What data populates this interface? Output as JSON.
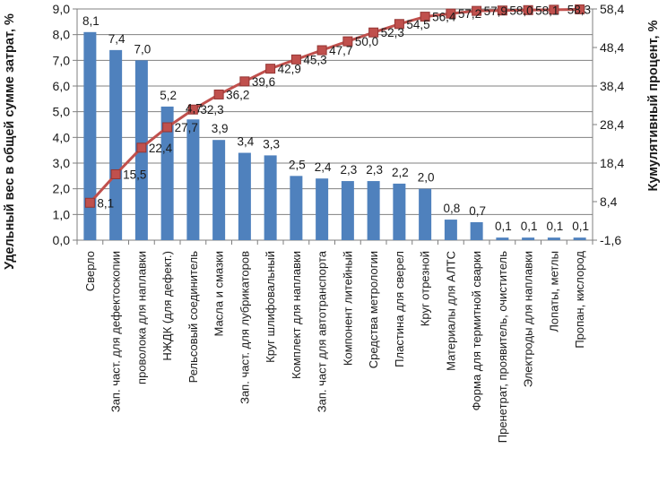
{
  "chart_data": {
    "type": "bar",
    "subtype": "pareto-combo-bar-line",
    "title": "",
    "legend": false,
    "grid": true,
    "categories": [
      "Сверло",
      "Зап. част. для дефектоскопии",
      "проволока для наплавки",
      "НЖДК (для дефект.)",
      "Рельсовый соединитель",
      "Масла и смазки",
      "Зап. част. для лубрикаторов",
      "Круг шлифовальный",
      "Комплект для наплавки",
      "Зап. част для автотранспорта",
      "Компонент литейный",
      "Средства метрологии",
      "Пластина для сверел",
      "Круг отрезной",
      "Материалы для АЛТС",
      "Форма для термитной сварки",
      "Пренетрат, проявитель, очиститель",
      "Электроды для наплавки",
      "Лопаты, метлы",
      "Пропан, кислород"
    ],
    "series": [
      {
        "name": "Удельный вес",
        "type": "bar",
        "axis": "left",
        "color": "#4f81bd",
        "values": [
          8.1,
          7.4,
          7.0,
          5.2,
          4.7,
          3.9,
          3.4,
          3.3,
          2.5,
          2.4,
          2.3,
          2.3,
          2.2,
          2.0,
          0.8,
          0.7,
          0.1,
          0.1,
          0.1,
          0.1
        ],
        "labels": [
          "8,1",
          "7,4",
          "7,0",
          "5,2",
          "4,7",
          "3,9",
          "3,4",
          "3,3",
          "2,5",
          "2,4",
          "2,3",
          "2,3",
          "2,2",
          "2,0",
          "0,8",
          "0,7",
          "0,1",
          "0,1",
          "0,1",
          "0,1"
        ]
      },
      {
        "name": "Кумулятивный процент",
        "type": "line",
        "axis": "right",
        "color": "#c0504d",
        "marker_border": "#943634",
        "values": [
          8.1,
          15.5,
          22.4,
          27.7,
          32.3,
          36.2,
          39.6,
          42.9,
          45.3,
          47.7,
          50.0,
          52.3,
          54.5,
          56.4,
          57.2,
          57.9,
          58.0,
          58.1,
          58.2,
          58.3
        ],
        "labels": [
          "8,1",
          "15,5",
          "22,4",
          "27,7",
          "32,3",
          "36,2",
          "39,6",
          "42,9",
          "45,3",
          "47,7",
          "50,0",
          "52,3",
          "54,5",
          "56,4",
          "57,2",
          "57,9",
          "58,0",
          "58,1",
          "",
          "58,3"
        ]
      }
    ],
    "left_axis": {
      "title": "Удельный вес в общей сумме затрат, %",
      "min": 0,
      "max": 9,
      "step": 1,
      "ticks": [
        "0,0",
        "1,0",
        "2,0",
        "3,0",
        "4,0",
        "5,0",
        "6,0",
        "7,0",
        "8,0",
        "9,0"
      ]
    },
    "right_axis": {
      "title": "Кумулятивный процент, %",
      "min": -1.6,
      "max": 58.4,
      "step": 10,
      "ticks": [
        "-1,6",
        "8,4",
        "18,4",
        "28,4",
        "38,4",
        "48,4",
        "58,4"
      ]
    },
    "colors": {
      "grid": "#808080",
      "axis": "#7f7f7f",
      "text": "#1a1a1a",
      "background": "#ffffff"
    }
  }
}
